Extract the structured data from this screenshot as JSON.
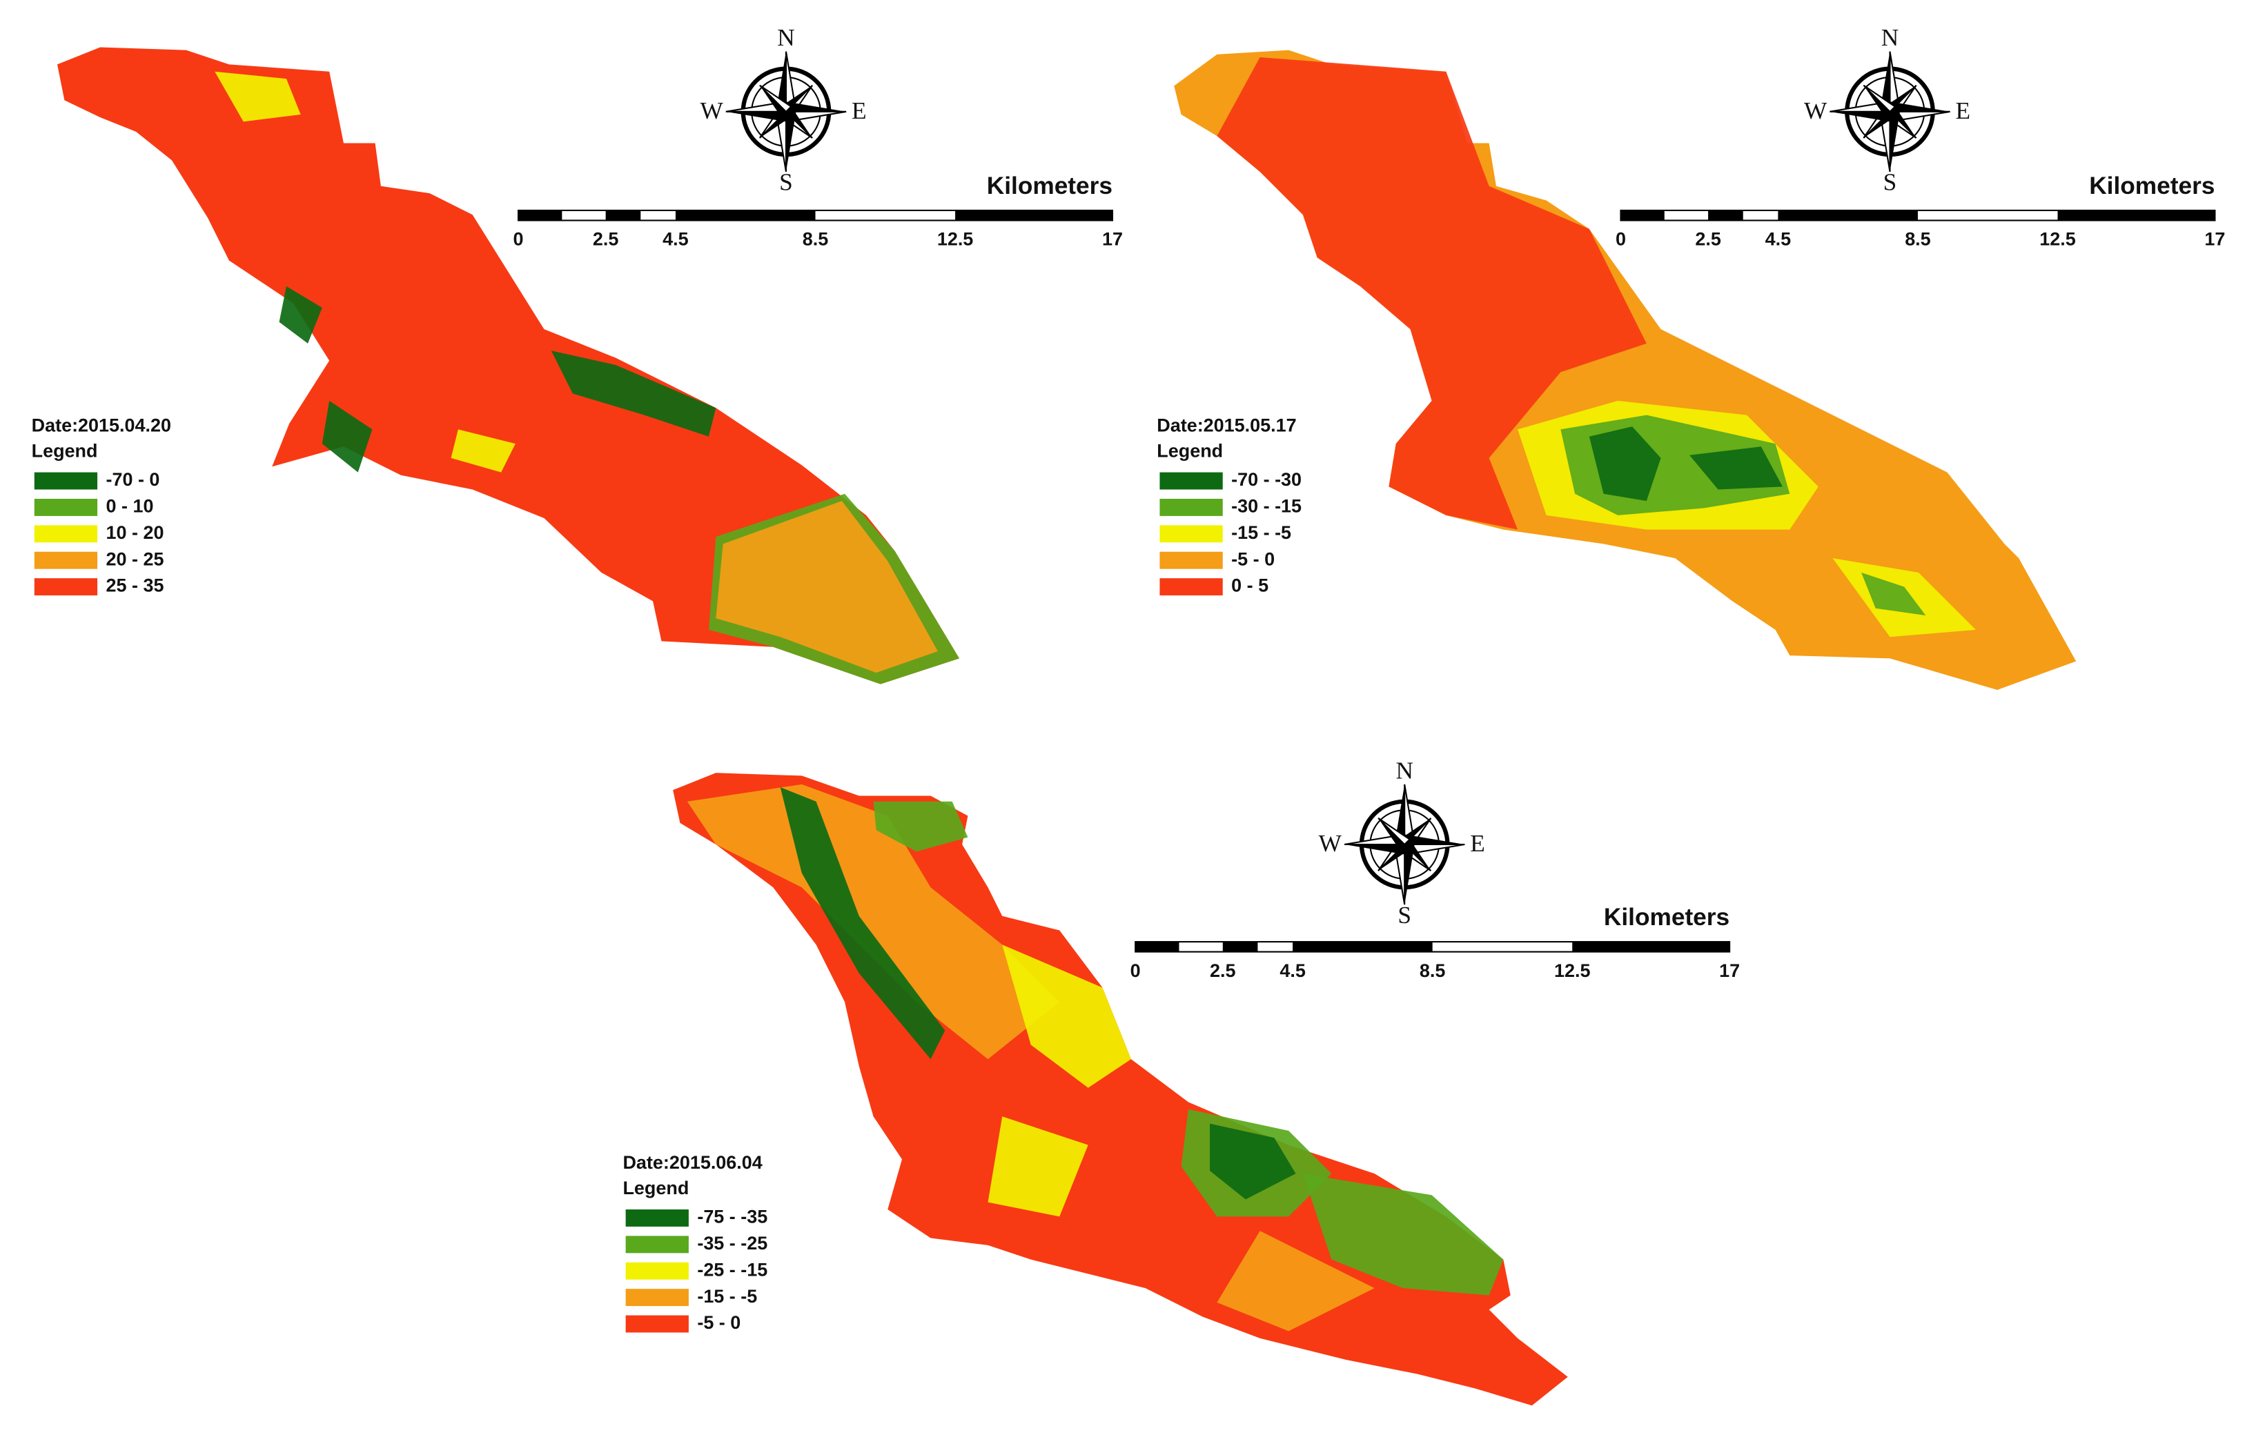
{
  "maps": [
    {
      "date": "Date:2015.04.20",
      "legend_title": "Legend",
      "legend": [
        {
          "label": "-70 - 0",
          "color": "#0d6a12"
        },
        {
          "label": "0 - 10",
          "color": "#5aa81c"
        },
        {
          "label": "10 - 20",
          "color": "#f2f200"
        },
        {
          "label": "20 - 25",
          "color": "#f59d16"
        },
        {
          "label": "25 - 35",
          "color": "#f73a14"
        }
      ],
      "compass": {
        "n": "N",
        "s": "S",
        "w": "W",
        "e": "E"
      },
      "scale": {
        "unit": "Kilometers",
        "ticks": [
          0,
          2.5,
          4.5,
          8.5,
          12.5,
          17
        ]
      }
    },
    {
      "date": "Date:2015.05.17",
      "legend_title": "Legend",
      "legend": [
        {
          "label": "-70 - -30",
          "color": "#0d6a12"
        },
        {
          "label": "-30 - -15",
          "color": "#5aa81c"
        },
        {
          "label": "-15 - -5",
          "color": "#f2f200"
        },
        {
          "label": "-5 - 0",
          "color": "#f59d16"
        },
        {
          "label": "0 - 5",
          "color": "#f73a14"
        }
      ],
      "compass": {
        "n": "N",
        "s": "S",
        "w": "W",
        "e": "E"
      },
      "scale": {
        "unit": "Kilometers",
        "ticks": [
          0,
          2.5,
          4.5,
          8.5,
          12.5,
          17
        ]
      }
    },
    {
      "date": "Date:2015.06.04",
      "legend_title": "Legend",
      "legend": [
        {
          "label": "-75 - -35",
          "color": "#0d6a12"
        },
        {
          "label": "-35 - -25",
          "color": "#5aa81c"
        },
        {
          "label": "-25 - -15",
          "color": "#f2f200"
        },
        {
          "label": "-15 - -5",
          "color": "#f59d16"
        },
        {
          "label": "-5 - 0",
          "color": "#f73a14"
        }
      ],
      "compass": {
        "n": "N",
        "s": "S",
        "w": "W",
        "e": "E"
      },
      "scale": {
        "unit": "Kilometers",
        "ticks": [
          0,
          2.5,
          4.5,
          8.5,
          12.5,
          17
        ]
      }
    }
  ]
}
